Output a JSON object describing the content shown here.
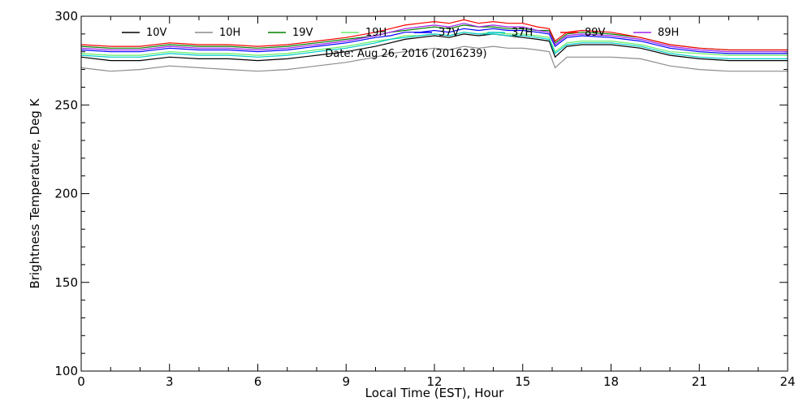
{
  "chart_data": {
    "type": "line",
    "title": "",
    "xlabel": "Local Time (EST), Hour",
    "ylabel": "Brightness Temperature, Deg K",
    "xlim": [
      0,
      24
    ],
    "ylim": [
      100,
      300
    ],
    "x_ticks": [
      0,
      3,
      6,
      9,
      12,
      15,
      18,
      21,
      24
    ],
    "y_ticks": [
      100,
      150,
      200,
      250,
      300
    ],
    "grid": false,
    "legend_position": "top",
    "annotation": "Date: Aug 26, 2016 (2016239)",
    "x": [
      0,
      1,
      2,
      3,
      4,
      5,
      6,
      7,
      8,
      9,
      10,
      10.5,
      11,
      11.5,
      12,
      12.5,
      13,
      13.5,
      14,
      14.5,
      15,
      15.5,
      15.9,
      16.1,
      16.5,
      17,
      18,
      19,
      20,
      21,
      22,
      23,
      24
    ],
    "series": [
      {
        "name": "10V",
        "color": "#000000",
        "values": [
          277,
          275,
          275,
          277,
          276,
          276,
          275,
          276,
          278,
          280,
          283,
          285,
          287,
          288,
          289,
          288,
          290,
          289,
          290,
          289,
          288,
          287,
          286,
          277,
          283,
          284,
          284,
          282,
          278,
          276,
          275,
          275,
          275
        ]
      },
      {
        "name": "10H",
        "color": "#8c8c8c",
        "values": [
          271,
          269,
          270,
          272,
          271,
          270,
          269,
          270,
          272,
          274,
          277,
          279,
          280,
          281,
          282,
          281,
          283,
          282,
          283,
          282,
          282,
          281,
          280,
          271,
          277,
          277,
          277,
          276,
          272,
          270,
          269,
          269,
          269
        ]
      },
      {
        "name": "19V",
        "color": "#008000",
        "values": [
          283,
          282,
          282,
          284,
          283,
          283,
          282,
          283,
          285,
          287,
          289,
          291,
          292,
          293,
          294,
          293,
          295,
          294,
          294,
          293,
          293,
          292,
          292,
          285,
          290,
          291,
          290,
          288,
          284,
          282,
          281,
          281,
          281
        ]
      },
      {
        "name": "19H",
        "color": "#66ee66",
        "values": [
          279,
          278,
          278,
          280,
          279,
          279,
          278,
          279,
          281,
          283,
          286,
          287,
          289,
          289,
          290,
          289,
          291,
          290,
          291,
          290,
          290,
          289,
          288,
          280,
          285,
          286,
          286,
          284,
          280,
          279,
          278,
          278,
          278
        ]
      },
      {
        "name": "37V",
        "color": "#0000ff",
        "values": [
          281,
          280,
          280,
          282,
          281,
          281,
          280,
          281,
          283,
          285,
          288,
          289,
          291,
          291,
          292,
          291,
          293,
          292,
          293,
          292,
          292,
          291,
          290,
          283,
          288,
          289,
          288,
          286,
          282,
          280,
          279,
          279,
          279
        ]
      },
      {
        "name": "37H",
        "color": "#00cccc",
        "values": [
          278,
          277,
          277,
          279,
          278,
          278,
          277,
          278,
          280,
          282,
          285,
          287,
          288,
          289,
          290,
          289,
          291,
          290,
          290,
          289,
          289,
          288,
          287,
          279,
          284,
          285,
          285,
          283,
          279,
          277,
          276,
          276,
          276
        ]
      },
      {
        "name": "89V",
        "color": "#ff0000",
        "values": [
          284,
          283,
          283,
          285,
          284,
          284,
          283,
          284,
          286,
          288,
          291,
          293,
          295,
          296,
          297,
          296,
          298,
          296,
          297,
          296,
          296,
          294,
          293,
          286,
          291,
          292,
          291,
          288,
          284,
          282,
          281,
          281,
          281
        ]
      },
      {
        "name": "89H",
        "color": "#a020f0",
        "values": [
          282,
          281,
          281,
          283,
          282,
          282,
          281,
          282,
          284,
          286,
          289,
          291,
          293,
          294,
          295,
          294,
          296,
          294,
          295,
          294,
          294,
          292,
          291,
          284,
          289,
          290,
          289,
          287,
          283,
          281,
          280,
          280,
          280
        ]
      }
    ]
  }
}
